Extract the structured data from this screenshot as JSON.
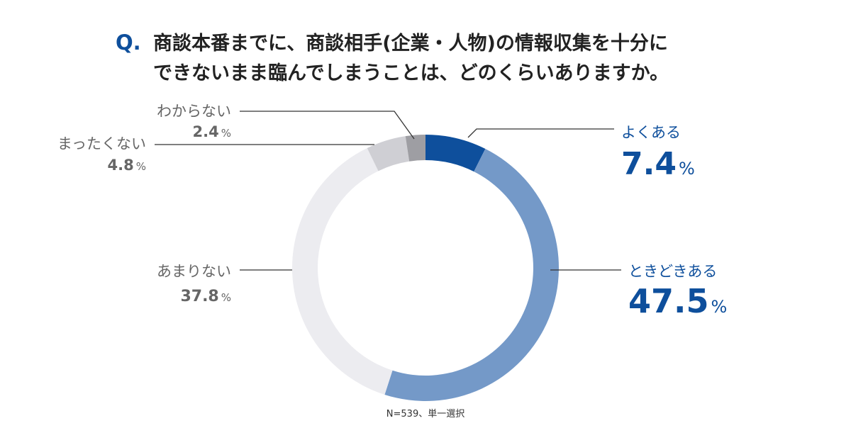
{
  "question": {
    "marker": "Q.",
    "line1": "商談本番までに、商談相手(企業・人物)の情報収集を十分に",
    "line2": "できないまま臨んでしまうことは、どのくらいありますか。"
  },
  "footnote": "N=539、単一選択",
  "colors": {
    "title": "#222222",
    "marker": "#0e4f9c",
    "positive_label": "#0e4f9c",
    "negative_label": "#666666",
    "leader": "#333333"
  },
  "chart_data": {
    "type": "pie",
    "donut": true,
    "title": "商談本番までに、商談相手(企業・人物)の情報収集を十分にできないまま臨んでしまうことは、どのくらいありますか。",
    "unit": "%",
    "n": 539,
    "slices": [
      {
        "label": "よくある",
        "value": 7.4,
        "value_text": "7.4",
        "color": "#0e4f9c",
        "tone": "positive",
        "side": "right"
      },
      {
        "label": "ときどきある",
        "value": 47.5,
        "value_text": "47.5",
        "color": "#7499c8",
        "tone": "positive",
        "side": "right"
      },
      {
        "label": "あまりない",
        "value": 37.8,
        "value_text": "37.8",
        "color": "#ececf0",
        "tone": "negative",
        "side": "left"
      },
      {
        "label": "まったくない",
        "value": 4.8,
        "value_text": "4.8",
        "color": "#cfcfd4",
        "tone": "negative",
        "side": "left"
      },
      {
        "label": "わからない",
        "value": 2.4,
        "value_text": "2.4",
        "color": "#9e9ea3",
        "tone": "negative",
        "side": "left"
      }
    ]
  }
}
